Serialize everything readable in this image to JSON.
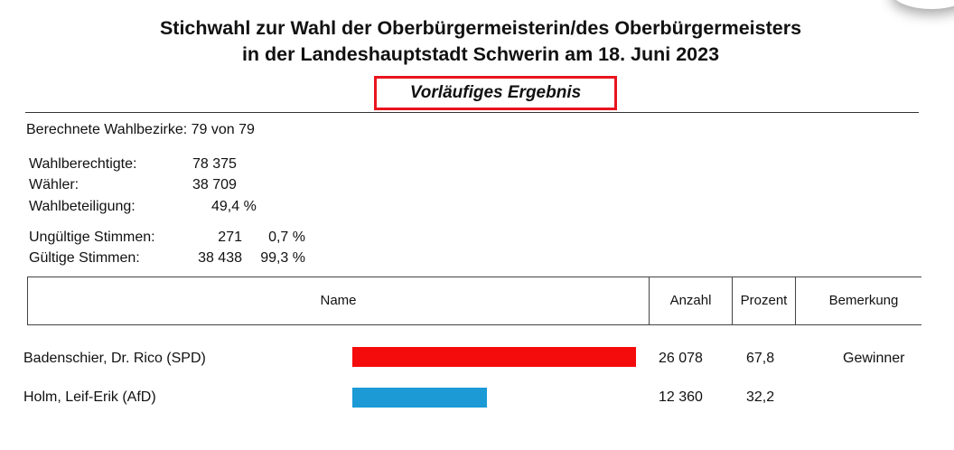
{
  "header": {
    "title_line1": "Stichwahl zur Wahl der Oberbürgermeisterin/des Oberbürgermeisters",
    "title_line2": "in der Landeshauptstadt Schwerin am 18. Juni 2023",
    "status": "Vorläufiges Ergebnis"
  },
  "summary": {
    "districts": "Berechnete Wahlbezirke: 79 von 79",
    "eligible_label": "Wahlberechtigte:",
    "eligible_value": "78 375",
    "voters_label": "Wähler:",
    "voters_value": "38 709",
    "turnout_label": "Wahlbeteiligung:",
    "turnout_value": "49,4 %",
    "invalid_label": "Ungültige Stimmen:",
    "invalid_count": "271",
    "invalid_pct": "0,7 %",
    "valid_label": "Gültige Stimmen:",
    "valid_count": "38 438",
    "valid_pct": "99,3 %"
  },
  "table": {
    "columns": [
      "Name",
      "Anzahl",
      "Prozent",
      "Bemerkung"
    ],
    "rows": [
      {
        "name": "Badenschier, Dr. Rico (SPD)",
        "count": "26 078",
        "percent": "67,8",
        "percent_value": 67.8,
        "bar_color": "#f40b0b",
        "remark": "Gewinner"
      },
      {
        "name": "Holm, Leif-Erik (AfD)",
        "count": "12 360",
        "percent": "32,2",
        "percent_value": 32.2,
        "bar_color": "#1b9ad6",
        "remark": ""
      }
    ]
  },
  "colors": {
    "highlight_border": "#e8141e"
  }
}
